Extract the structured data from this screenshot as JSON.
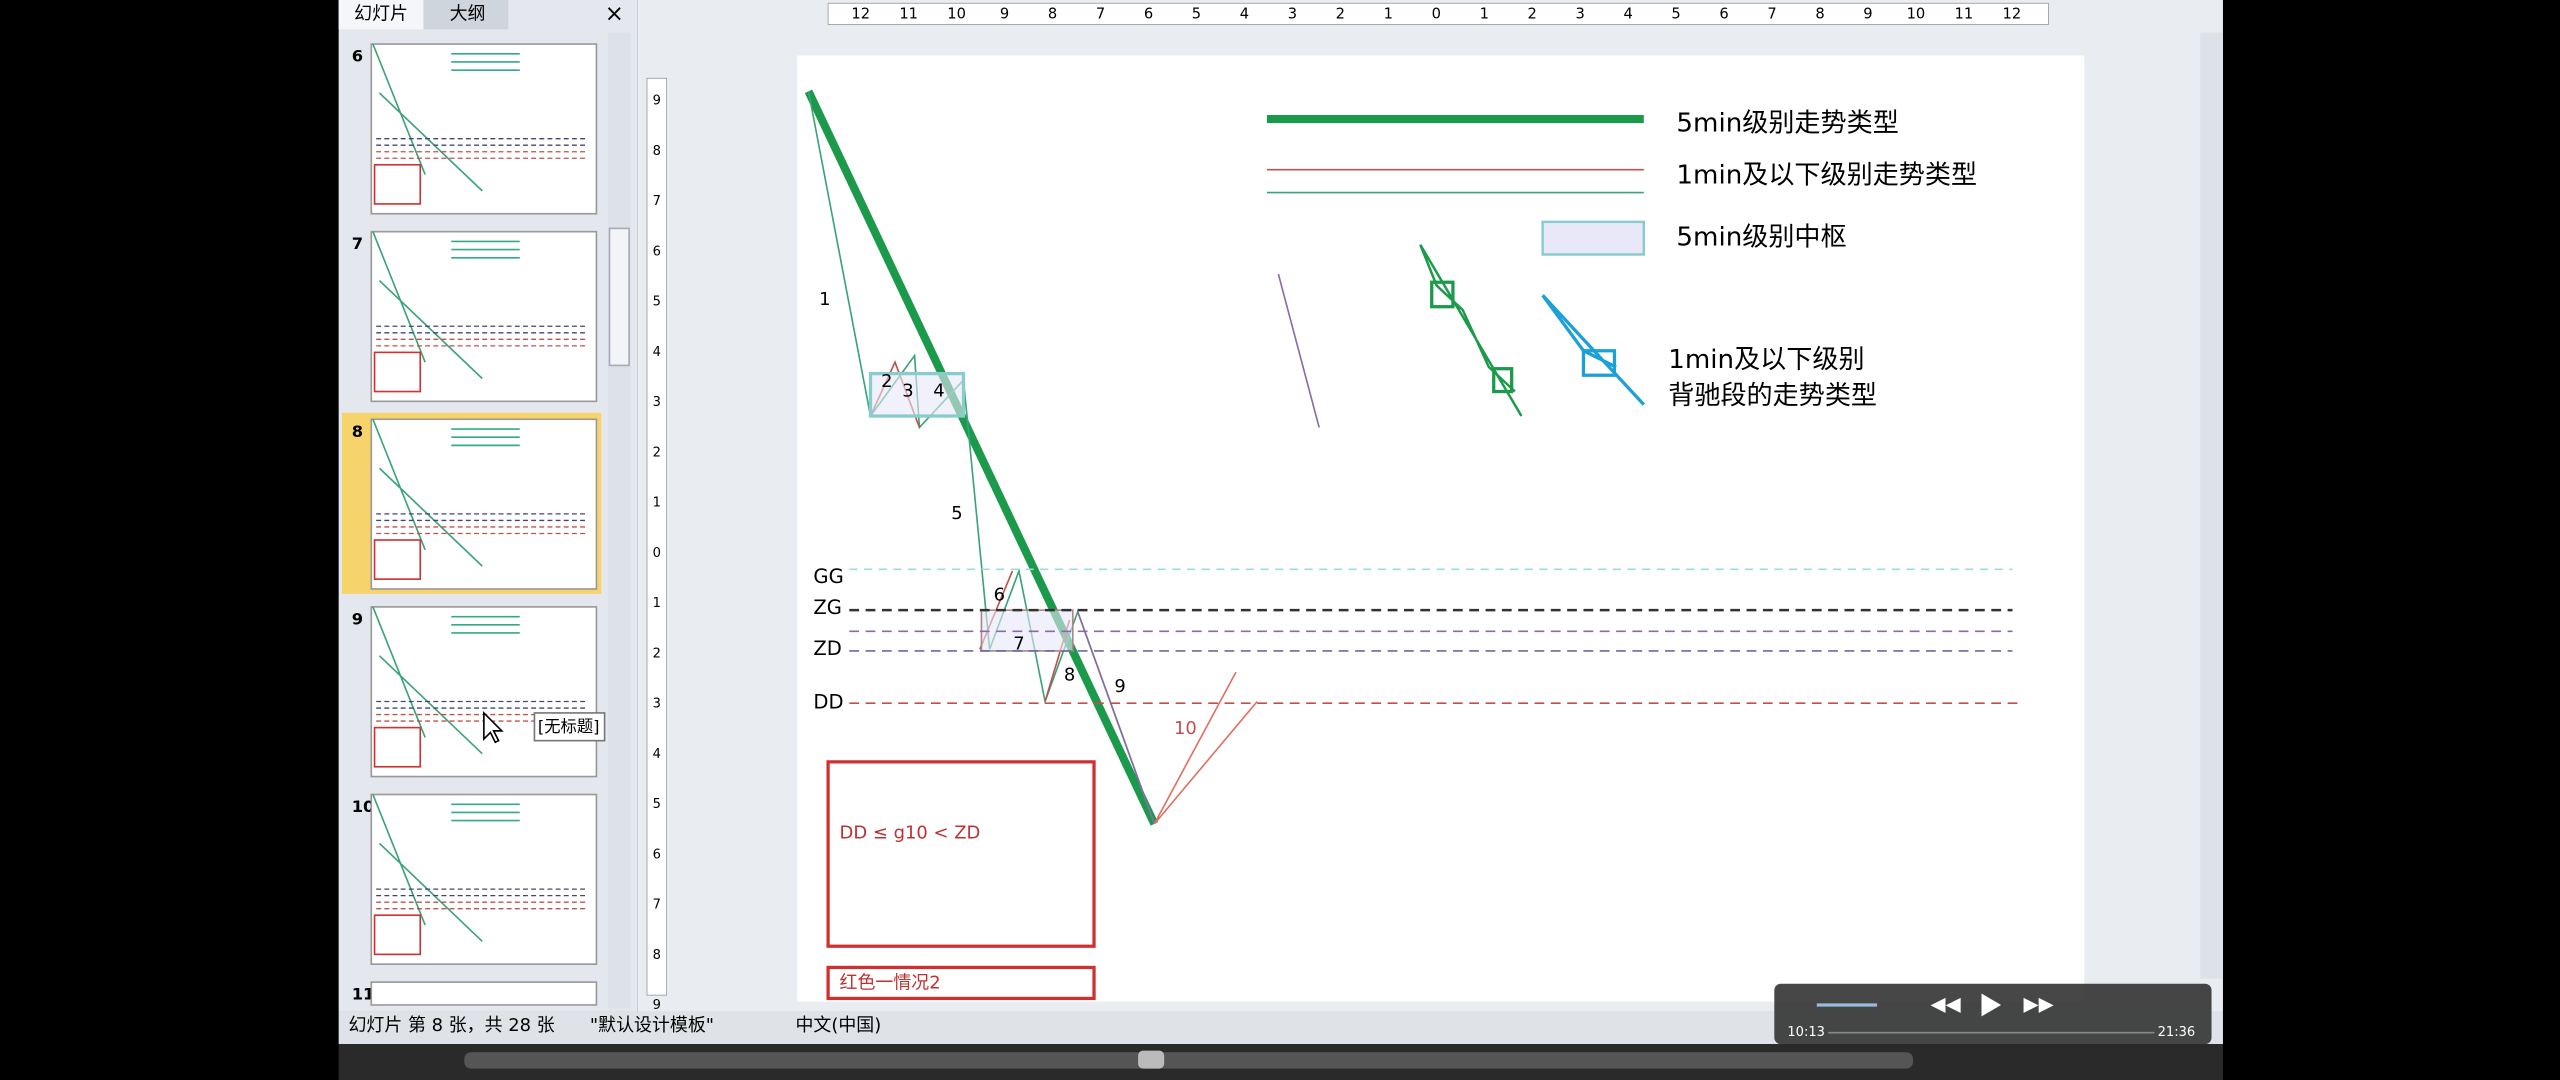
{
  "panel": {
    "tabs": [
      "幻灯片",
      "大纲"
    ],
    "slide_numbers": [
      "6",
      "7",
      "8",
      "9",
      "10",
      "11"
    ],
    "tooltip": "[无标题]"
  },
  "ruler": {
    "h": [
      "12",
      "11",
      "10",
      "9",
      "8",
      "7",
      "6",
      "5",
      "4",
      "3",
      "2",
      "1",
      "0",
      "1",
      "2",
      "3",
      "4",
      "5",
      "6",
      "7",
      "8",
      "9",
      "10",
      "11",
      "12"
    ],
    "v": [
      "9",
      "8",
      "7",
      "6",
      "5",
      "4",
      "3",
      "2",
      "1",
      "0",
      "1",
      "2",
      "3",
      "4",
      "5",
      "6",
      "7",
      "8",
      "9"
    ]
  },
  "slide": {
    "legend": [
      "5min级别走势类型",
      "1min及以下级别走势类型",
      "5min级别中枢"
    ],
    "legend4": [
      "1min及以下级别",
      "背驰段的走势类型"
    ],
    "segments": [
      "1",
      "2",
      "3",
      "4",
      "5",
      "6",
      "7",
      "8",
      "9",
      "10"
    ],
    "levels": [
      "GG",
      "ZG",
      "ZD",
      "DD"
    ],
    "formula": "DD ≤ g10 < ZD",
    "caption": "红色一情况2"
  },
  "status": [
    "幻灯片 第 8 张，共 28 张",
    "\"默认设计模板\"",
    "中文(中国)"
  ],
  "player": {
    "elapsed": "10:13",
    "total": "21:36"
  }
}
